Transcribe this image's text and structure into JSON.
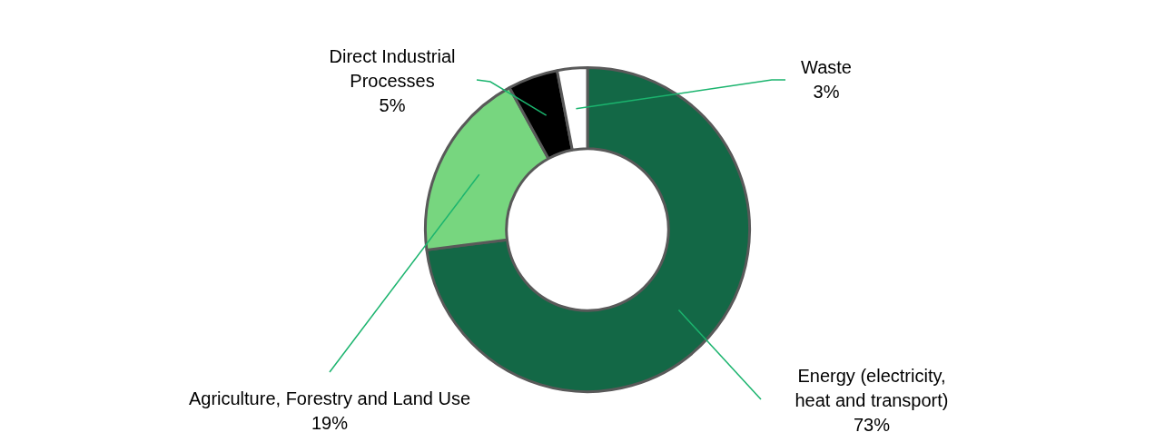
{
  "chart_data": {
    "type": "donut",
    "categories": [
      "Energy (electricity, heat and transport)",
      "Agriculture, Forestry and Land Use",
      "Direct Industrial Processes",
      "Waste"
    ],
    "values": [
      73,
      19,
      5,
      3
    ],
    "value_labels": [
      "73%",
      "19%",
      "5%",
      "3%"
    ],
    "colors": [
      "#136846",
      "#77d67f",
      "#000000",
      "#ffffff"
    ],
    "legend": false
  }
}
